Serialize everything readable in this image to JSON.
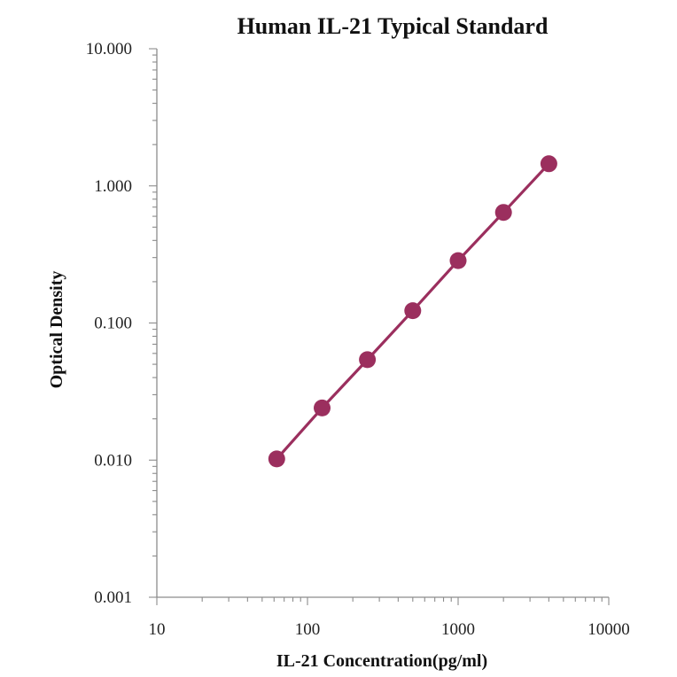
{
  "chart_data": {
    "type": "line",
    "title": "Human  IL-21 Typical Standard",
    "xlabel": "IL-21  Concentration(pg/ml)",
    "ylabel": "Optical  Density",
    "x_scale": "log",
    "y_scale": "log",
    "xlim": [
      10,
      10000
    ],
    "ylim": [
      0.001,
      10
    ],
    "x_ticks": [
      "10",
      "100",
      "1000",
      "10000"
    ],
    "y_ticks": [
      "0.001",
      "0.010",
      "0.100",
      "1.000",
      "10.000"
    ],
    "grid": false,
    "series": [
      {
        "x": [
          62.5,
          125,
          250,
          500,
          1000,
          2000,
          4000
        ],
        "y": [
          0.0102,
          0.024,
          0.054,
          0.123,
          0.285,
          0.64,
          1.45
        ]
      }
    ],
    "colors": {
      "series": "#9b2f5e",
      "axis": "#8c8c8c"
    }
  }
}
